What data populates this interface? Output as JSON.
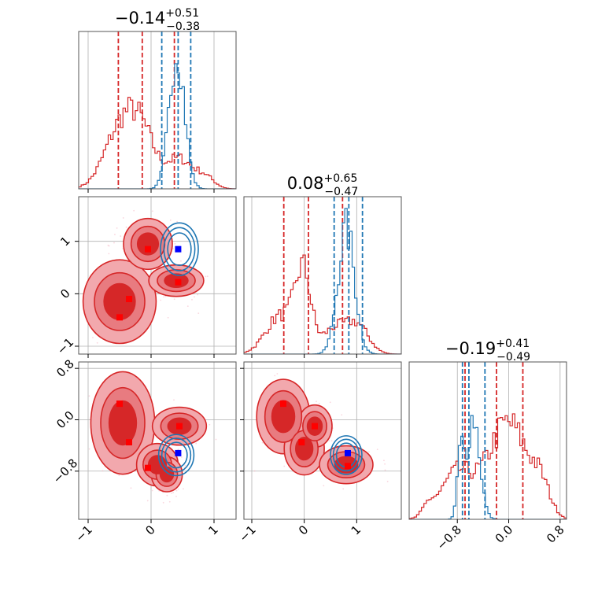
{
  "colors": {
    "red": "#d62728",
    "blue": "#1f77b4",
    "marker_red": "#ff0000",
    "marker_blue": "#0000ff",
    "grid": "#b0b0b0"
  },
  "titles": [
    {
      "main": "−0.14",
      "sup": "+0.51",
      "sub": "−0.38"
    },
    {
      "main": "0.08",
      "sup": "+0.65",
      "sub": "−0.47"
    },
    {
      "main": "−0.19",
      "sup": "+0.41",
      "sub": "−0.49"
    }
  ],
  "chart_data": {
    "type": "corner",
    "parameters": [
      {
        "range": [
          -1.15,
          1.35
        ],
        "ticks": [
          -1,
          0,
          1
        ],
        "tick_labels": [
          "−1",
          "0",
          "1"
        ]
      },
      {
        "range": [
          -1.15,
          1.85
        ],
        "ticks": [
          -1,
          0,
          1
        ],
        "tick_labels": [
          "−1",
          "0",
          "1"
        ]
      },
      {
        "range": [
          -1.55,
          0.9
        ],
        "ticks": [
          -0.8,
          0.0,
          0.8
        ],
        "tick_labels": [
          "−0.8",
          "0.0",
          "0.8"
        ]
      }
    ],
    "series": [
      {
        "color": "red",
        "quantiles": [
          [
            -0.52,
            -0.14,
            0.37
          ],
          [
            -0.39,
            0.08,
            0.73
          ],
          [
            -0.68,
            -0.19,
            0.22
          ]
        ],
        "hist_peaks": [
          [
            {
              "m": -0.5,
              "s": 0.25,
              "h": 0.38
            },
            {
              "m": -0.15,
              "s": 0.22,
              "h": 0.34
            },
            {
              "m": 0.45,
              "s": 0.2,
              "h": 0.2
            },
            {
              "m": 0.85,
              "s": 0.15,
              "h": 0.08
            }
          ],
          [
            {
              "m": -0.45,
              "s": 0.28,
              "h": 0.26
            },
            {
              "m": -0.02,
              "s": 0.15,
              "h": 0.52
            },
            {
              "m": 0.55,
              "s": 0.22,
              "h": 0.16
            },
            {
              "m": 1.0,
              "s": 0.22,
              "h": 0.2
            }
          ],
          [
            {
              "m": -1.25,
              "s": 0.09,
              "h": 0.07
            },
            {
              "m": -0.8,
              "s": 0.25,
              "h": 0.32
            },
            {
              "m": -0.2,
              "s": 0.25,
              "h": 0.32
            },
            {
              "m": 0.1,
              "s": 0.25,
              "h": 0.46
            },
            {
              "m": 0.5,
              "s": 0.15,
              "h": 0.2
            }
          ]
        ],
        "blobs": [
          [
            {
              "x": -0.5,
              "y": -0.15,
              "rx": 0.4,
              "ry": 0.55,
              "w": 1.0
            },
            {
              "x": -0.05,
              "y": 0.95,
              "rx": 0.28,
              "ry": 0.35,
              "w": 0.85
            },
            {
              "x": 0.4,
              "y": 0.25,
              "rx": 0.32,
              "ry": 0.22,
              "w": 0.8
            }
          ],
          [
            {
              "x": -0.45,
              "y": -0.05,
              "rx": 0.35,
              "ry": 0.55,
              "w": 1.0
            },
            {
              "x": 0.1,
              "y": -0.7,
              "rx": 0.25,
              "ry": 0.25,
              "w": 0.7
            },
            {
              "x": 0.45,
              "y": -0.1,
              "rx": 0.32,
              "ry": 0.22,
              "w": 0.75
            },
            {
              "x": 0.25,
              "y": -0.85,
              "rx": 0.2,
              "ry": 0.22,
              "w": 0.5
            }
          ],
          [
            {
              "x": -0.4,
              "y": 0.05,
              "rx": 0.35,
              "ry": 0.4,
              "w": 1.0
            },
            {
              "x": 0.0,
              "y": -0.45,
              "rx": 0.28,
              "ry": 0.3,
              "w": 0.8
            },
            {
              "x": 0.2,
              "y": -0.1,
              "rx": 0.25,
              "ry": 0.25,
              "w": 0.7
            },
            {
              "x": 0.8,
              "y": -0.7,
              "rx": 0.38,
              "ry": 0.22,
              "w": 0.75
            }
          ]
        ],
        "markers": [
          [
            [
              -0.35,
              -0.1
            ],
            [
              -0.5,
              -0.45
            ],
            [
              -0.05,
              0.85
            ],
            [
              0.43,
              0.22
            ]
          ],
          [
            [
              -0.5,
              0.25
            ],
            [
              -0.35,
              -0.35
            ],
            [
              -0.05,
              -0.75
            ],
            [
              0.45,
              -0.1
            ]
          ],
          [
            [
              -0.4,
              0.25
            ],
            [
              -0.05,
              -0.35
            ],
            [
              0.2,
              -0.1
            ],
            [
              0.83,
              -0.72
            ]
          ]
        ]
      },
      {
        "color": "blue",
        "quantiles": [
          [
            0.17,
            0.43,
            0.63
          ],
          [
            0.57,
            0.85,
            1.11
          ],
          [
            -0.72,
            -0.62,
            -0.37
          ]
        ],
        "hist_peaks": [
          [
            {
              "m": 0.41,
              "s": 0.12,
              "h": 0.95
            }
          ],
          [
            {
              "m": 0.8,
              "s": 0.16,
              "h": 0.85
            }
          ],
          [
            {
              "m": -0.55,
              "s": 0.1,
              "h": 0.7
            },
            {
              "m": -0.75,
              "s": 0.05,
              "h": 0.42
            }
          ]
        ],
        "blobs": [
          [
            {
              "x": 0.45,
              "y": 0.85,
              "rx": 0.3,
              "ry": 0.5,
              "w": 1.0
            }
          ],
          [
            {
              "x": 0.4,
              "y": -0.55,
              "rx": 0.28,
              "ry": 0.32,
              "w": 1.0
            }
          ],
          [
            {
              "x": 0.8,
              "y": -0.55,
              "rx": 0.3,
              "ry": 0.3,
              "w": 1.0
            }
          ]
        ],
        "markers": [
          [
            [
              0.43,
              0.85
            ]
          ],
          [
            [
              0.43,
              -0.52
            ]
          ],
          [
            [
              0.83,
              -0.52
            ]
          ]
        ]
      }
    ]
  }
}
